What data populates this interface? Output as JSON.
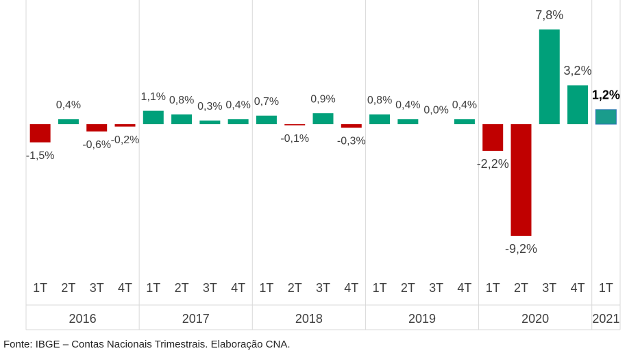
{
  "chart_data": {
    "type": "bar",
    "categories": [
      "1T",
      "2T",
      "3T",
      "4T",
      "1T",
      "2T",
      "3T",
      "4T",
      "1T",
      "2T",
      "3T",
      "4T",
      "1T",
      "2T",
      "3T",
      "4T",
      "1T",
      "2T",
      "3T",
      "4T",
      "1T"
    ],
    "year_categories": [
      "2016",
      null,
      null,
      null,
      "2017",
      null,
      null,
      null,
      "2018",
      null,
      null,
      null,
      "2019",
      null,
      null,
      null,
      "2020",
      null,
      null,
      null,
      "2021"
    ],
    "values": [
      -1.5,
      0.4,
      -0.6,
      -0.2,
      1.1,
      0.8,
      0.3,
      0.4,
      0.7,
      -0.1,
      0.9,
      -0.3,
      0.8,
      0.4,
      0.0,
      0.4,
      -2.2,
      -9.2,
      7.8,
      3.2,
      1.2
    ],
    "value_labels": [
      "-1,5%",
      "0,4%",
      "-0,6%",
      "-0,2%",
      "1,1%",
      "0,8%",
      "0,3%",
      "0,4%",
      "0,7%",
      "-0,1%",
      "0,9%",
      "-0,3%",
      "0,8%",
      "0,4%",
      "0,0%",
      "0,4%",
      "-2,2%",
      "-9,2%",
      "7,8%",
      "3,2%",
      "1,2%"
    ],
    "colors": [
      "#c00000",
      "#00a07a",
      "#c00000",
      "#c00000",
      "#00a07a",
      "#00a07a",
      "#00a07a",
      "#00a07a",
      "#00a07a",
      "#c00000",
      "#00a07a",
      "#c00000",
      "#00a07a",
      "#00a07a",
      "#00a07a",
      "#00a07a",
      "#c00000",
      "#c00000",
      "#00a07a",
      "#00a07a",
      "#1a9c8c"
    ],
    "source": "Fonte: IBGE – Contas Nacionais Trimestrais. Elaboração CNA."
  }
}
